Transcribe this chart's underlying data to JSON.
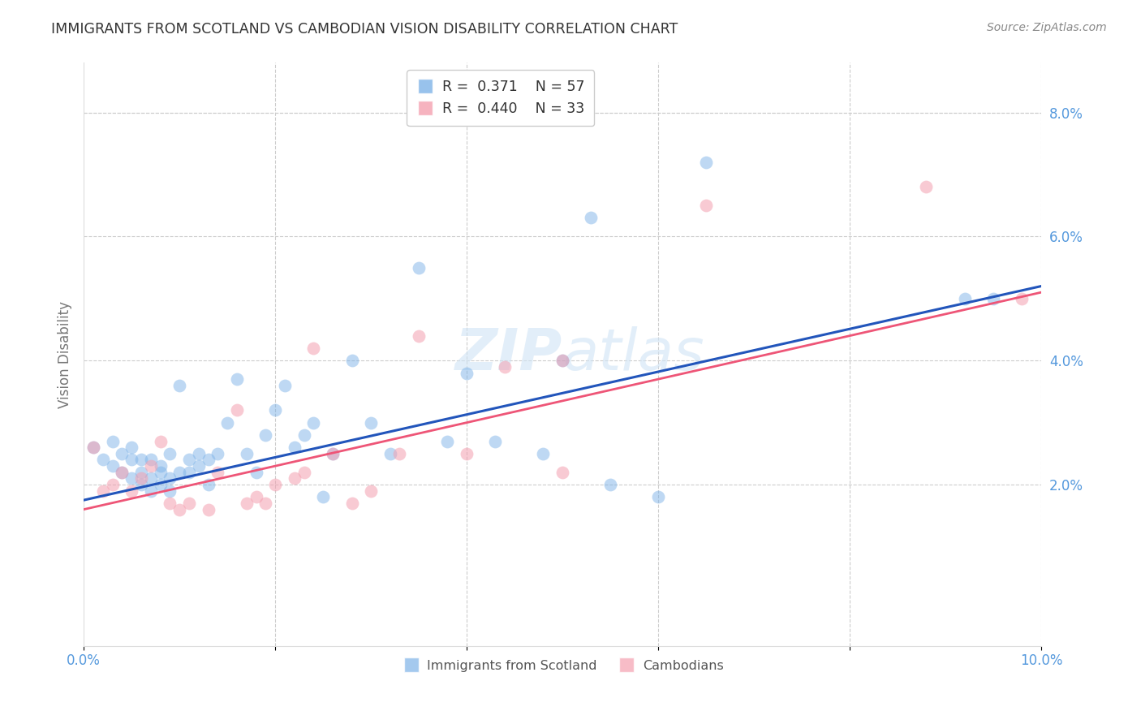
{
  "title": "IMMIGRANTS FROM SCOTLAND VS CAMBODIAN VISION DISABILITY CORRELATION CHART",
  "source": "Source: ZipAtlas.com",
  "ylabel": "Vision Disability",
  "xlim": [
    0.0,
    0.1
  ],
  "ylim": [
    -0.006,
    0.088
  ],
  "color_scotland": "#7EB3E8",
  "color_cambodian": "#F4A0B0",
  "color_trendline_scotland": "#2255BB",
  "color_trendline_cambodian": "#EE5577",
  "color_axis_labels": "#5599DD",
  "watermark_color": "#D0E4F5",
  "scotland_x": [
    0.001,
    0.002,
    0.003,
    0.003,
    0.004,
    0.004,
    0.005,
    0.005,
    0.005,
    0.006,
    0.006,
    0.006,
    0.007,
    0.007,
    0.007,
    0.008,
    0.008,
    0.008,
    0.009,
    0.009,
    0.009,
    0.01,
    0.01,
    0.011,
    0.011,
    0.012,
    0.012,
    0.013,
    0.013,
    0.014,
    0.015,
    0.016,
    0.017,
    0.018,
    0.019,
    0.02,
    0.021,
    0.022,
    0.023,
    0.024,
    0.025,
    0.026,
    0.028,
    0.03,
    0.032,
    0.035,
    0.038,
    0.04,
    0.043,
    0.048,
    0.05,
    0.053,
    0.055,
    0.06,
    0.065,
    0.092,
    0.095
  ],
  "scotland_y": [
    0.026,
    0.024,
    0.023,
    0.027,
    0.022,
    0.025,
    0.021,
    0.024,
    0.026,
    0.02,
    0.022,
    0.024,
    0.019,
    0.021,
    0.024,
    0.02,
    0.022,
    0.023,
    0.019,
    0.021,
    0.025,
    0.022,
    0.036,
    0.022,
    0.024,
    0.023,
    0.025,
    0.02,
    0.024,
    0.025,
    0.03,
    0.037,
    0.025,
    0.022,
    0.028,
    0.032,
    0.036,
    0.026,
    0.028,
    0.03,
    0.018,
    0.025,
    0.04,
    0.03,
    0.025,
    0.055,
    0.027,
    0.038,
    0.027,
    0.025,
    0.04,
    0.063,
    0.02,
    0.018,
    0.072,
    0.05,
    0.05
  ],
  "cambodian_x": [
    0.001,
    0.002,
    0.003,
    0.004,
    0.005,
    0.006,
    0.007,
    0.008,
    0.009,
    0.01,
    0.011,
    0.013,
    0.014,
    0.016,
    0.017,
    0.018,
    0.019,
    0.02,
    0.022,
    0.023,
    0.024,
    0.026,
    0.028,
    0.03,
    0.033,
    0.035,
    0.04,
    0.044,
    0.05,
    0.065,
    0.088,
    0.098,
    0.05
  ],
  "cambodian_y": [
    0.026,
    0.019,
    0.02,
    0.022,
    0.019,
    0.021,
    0.023,
    0.027,
    0.017,
    0.016,
    0.017,
    0.016,
    0.022,
    0.032,
    0.017,
    0.018,
    0.017,
    0.02,
    0.021,
    0.022,
    0.042,
    0.025,
    0.017,
    0.019,
    0.025,
    0.044,
    0.025,
    0.039,
    0.04,
    0.065,
    0.068,
    0.05,
    0.022
  ],
  "trend_scotland_x0": 0.0,
  "trend_scotland_y0": 0.0175,
  "trend_scotland_x1": 0.1,
  "trend_scotland_y1": 0.052,
  "trend_cambodian_x0": 0.0,
  "trend_cambodian_y0": 0.016,
  "trend_cambodian_x1": 0.1,
  "trend_cambodian_y1": 0.051
}
